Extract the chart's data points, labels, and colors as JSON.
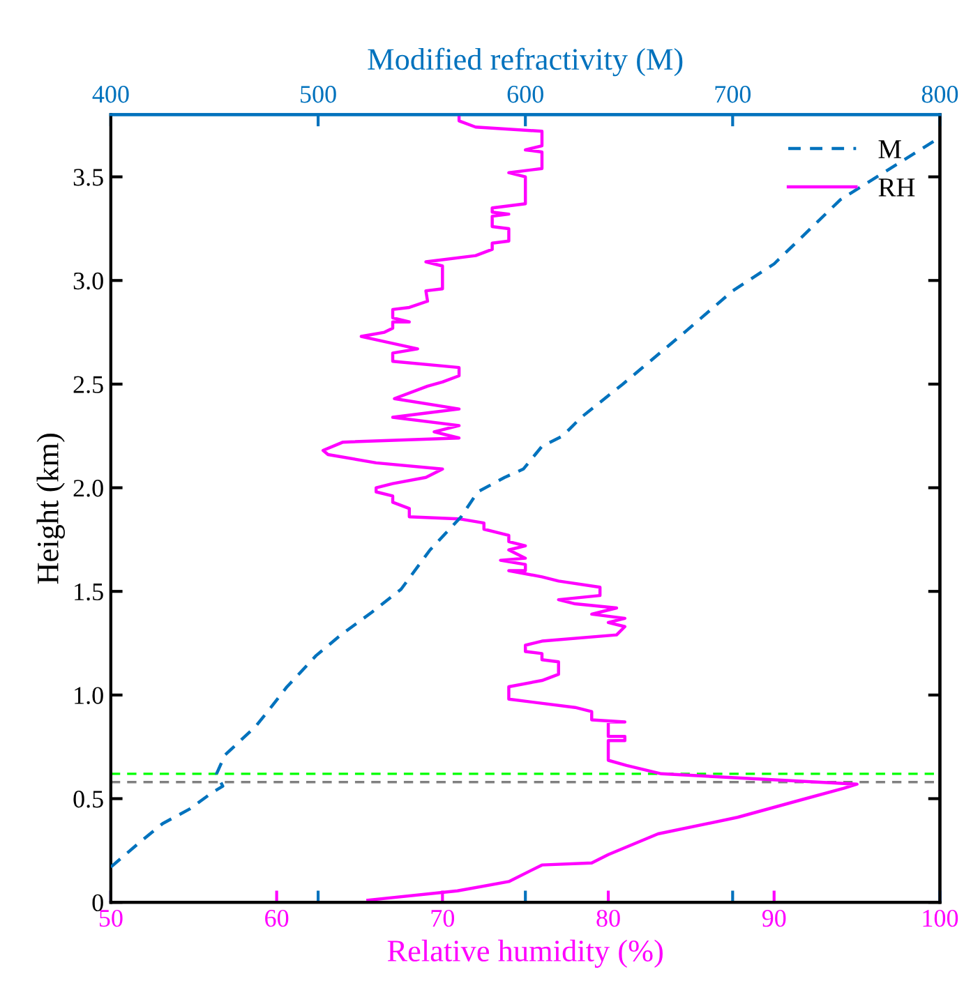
{
  "chart_data": {
    "type": "line",
    "xlabel": "Relative humidity (%)",
    "x2label": "Modified refractivity (M)",
    "ylabel": "Height (km)",
    "xlim": [
      50,
      100
    ],
    "xticks": [
      50,
      60,
      70,
      80,
      90,
      100
    ],
    "x2lim": [
      400,
      800
    ],
    "x2ticks": [
      400,
      500,
      600,
      700,
      800
    ],
    "ylim": [
      0,
      3.8
    ],
    "yticks": [
      0,
      {
        "value": 0.5,
        "label": "0.5"
      },
      {
        "value": 1.0,
        "label": "1.0"
      },
      {
        "value": 1.5,
        "label": "1.5"
      },
      {
        "value": 2.0,
        "label": "2.0"
      },
      {
        "value": 2.5,
        "label": "2.5"
      },
      {
        "value": 3.0,
        "label": "3.0"
      },
      {
        "value": 3.5,
        "label": "3.5"
      }
    ],
    "grid": false,
    "legend": "top right",
    "ref_lines": [
      {
        "axis": "y",
        "value": 0.62,
        "color": "#00ff00",
        "line_style": "dashed"
      },
      {
        "axis": "y",
        "value": 0.58,
        "color": "#808080",
        "line_style": "dashed"
      }
    ],
    "series": [
      {
        "name": "M",
        "color": "#0072bd",
        "axis": "x2",
        "line_style": "dashed",
        "x": [
          400,
          414,
          425,
          438,
          449,
          454,
          451,
          455,
          470,
          478,
          485,
          499,
          511,
          526,
          540,
          554,
          569,
          577,
          590,
          599,
          608,
          618,
          627,
          647,
          678,
          700,
          720,
          752,
          800
        ],
        "values": [
          0.17,
          0.29,
          0.38,
          0.45,
          0.53,
          0.56,
          0.62,
          0.71,
          0.85,
          0.95,
          1.04,
          1.19,
          1.29,
          1.4,
          1.51,
          1.7,
          1.86,
          1.98,
          2.05,
          2.09,
          2.2,
          2.25,
          2.34,
          2.5,
          2.76,
          2.95,
          3.08,
          3.39,
          3.69
        ]
      },
      {
        "name": "RH",
        "color": "#ff00ff",
        "line_style": "solid",
        "x": [
          65.5,
          70.9,
          74,
          76,
          79,
          80,
          83,
          87.8,
          91.9,
          94.2,
          95,
          83.2,
          81.1,
          80,
          80,
          81,
          81,
          80,
          80,
          81,
          79,
          79,
          78,
          74,
          74,
          76,
          77,
          77,
          76,
          76,
          75,
          75,
          76,
          80.5,
          81,
          80,
          81,
          79,
          80.5,
          78,
          77,
          79.5,
          79.5,
          77,
          76,
          74,
          75,
          75,
          73.5,
          75,
          74,
          75,
          74,
          74,
          72.5,
          72.5,
          71,
          68,
          68,
          67,
          67,
          66,
          66,
          67,
          69,
          70,
          66,
          63.1,
          62.8,
          64,
          71,
          69.5,
          71,
          67,
          69,
          71,
          67.1,
          69.1,
          70,
          71,
          71,
          67,
          67,
          68.5,
          65.1,
          66.5,
          67,
          67,
          68,
          67,
          67,
          68,
          69.1,
          69,
          70,
          70,
          69,
          72,
          73,
          73,
          74,
          74,
          73,
          73,
          74,
          73,
          73,
          75,
          75,
          74,
          76,
          76,
          75,
          76,
          76,
          72,
          71,
          71
        ],
        "values": [
          0.01,
          0.055,
          0.1,
          0.18,
          0.19,
          0.23,
          0.33,
          0.41,
          0.5,
          0.55,
          0.57,
          0.62,
          0.66,
          0.685,
          0.78,
          0.78,
          0.8,
          0.8,
          0.87,
          0.87,
          0.88,
          0.92,
          0.94,
          0.98,
          1.04,
          1.07,
          1.1,
          1.16,
          1.17,
          1.2,
          1.21,
          1.24,
          1.26,
          1.29,
          1.33,
          1.35,
          1.37,
          1.39,
          1.42,
          1.44,
          1.46,
          1.48,
          1.52,
          1.55,
          1.57,
          1.6,
          1.6,
          1.63,
          1.65,
          1.66,
          1.7,
          1.72,
          1.74,
          1.77,
          1.8,
          1.83,
          1.85,
          1.86,
          1.9,
          1.93,
          1.96,
          1.98,
          2.0,
          2.02,
          2.05,
          2.09,
          2.12,
          2.16,
          2.18,
          2.22,
          2.24,
          2.27,
          2.3,
          2.34,
          2.36,
          2.38,
          2.43,
          2.49,
          2.51,
          2.54,
          2.58,
          2.61,
          2.65,
          2.67,
          2.73,
          2.75,
          2.77,
          2.8,
          2.8,
          2.82,
          2.86,
          2.87,
          2.9,
          2.95,
          2.96,
          3.07,
          3.09,
          3.12,
          3.15,
          3.18,
          3.19,
          3.25,
          3.26,
          3.31,
          3.32,
          3.33,
          3.35,
          3.37,
          3.5,
          3.52,
          3.54,
          3.62,
          3.63,
          3.65,
          3.72,
          3.74,
          3.77,
          3.79
        ]
      }
    ]
  }
}
